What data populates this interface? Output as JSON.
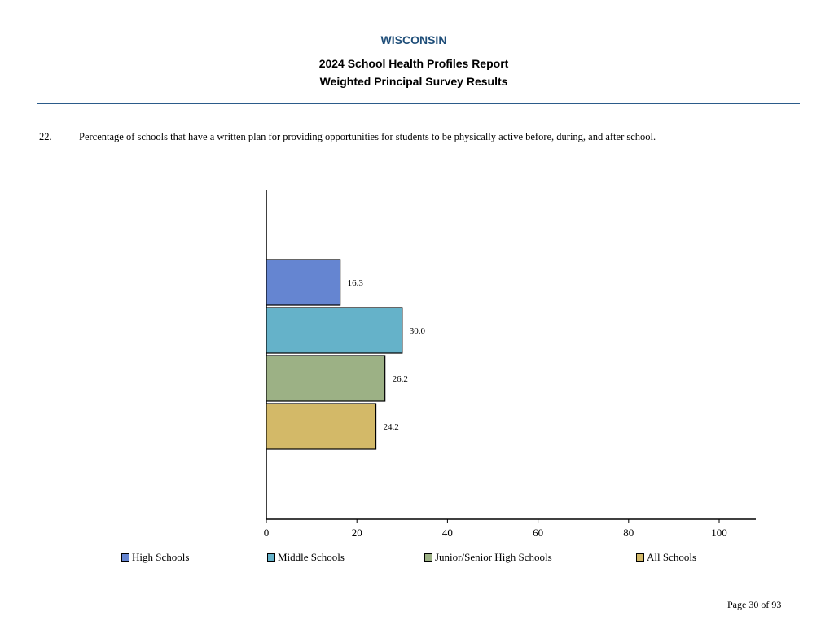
{
  "header": {
    "state": "WISCONSIN",
    "title_line1": "2024 School Health Profiles Report",
    "title_line2": "Weighted Principal Survey Results"
  },
  "question": {
    "number": "22.",
    "text": "Percentage of schools that have a written plan for providing opportunities for students to be physically active before, during, and after school."
  },
  "chart_data": {
    "type": "bar",
    "orientation": "horizontal",
    "categories": [
      "High Schools",
      "Middle Schools",
      "Junior/Senior High Schools",
      "All Schools"
    ],
    "values": [
      16.3,
      30.0,
      26.2,
      24.2
    ],
    "value_labels": [
      "16.3",
      "30.0",
      "26.2",
      "24.2"
    ],
    "colors": [
      "#6585d1",
      "#65b2c9",
      "#9cb185",
      "#d3b968"
    ],
    "xlim": [
      0,
      100
    ],
    "xticks": [
      "0",
      "20",
      "40",
      "60",
      "80",
      "100"
    ],
    "grid": false,
    "legend_position": "bottom"
  },
  "legend": [
    {
      "label": "High Schools",
      "color": "#6585d1"
    },
    {
      "label": "Middle Schools",
      "color": "#65b2c9"
    },
    {
      "label": "Junior/Senior High Schools",
      "color": "#9cb185"
    },
    {
      "label": "All Schools",
      "color": "#d3b968"
    }
  ],
  "footer": {
    "page": "Page 30 of 93"
  }
}
